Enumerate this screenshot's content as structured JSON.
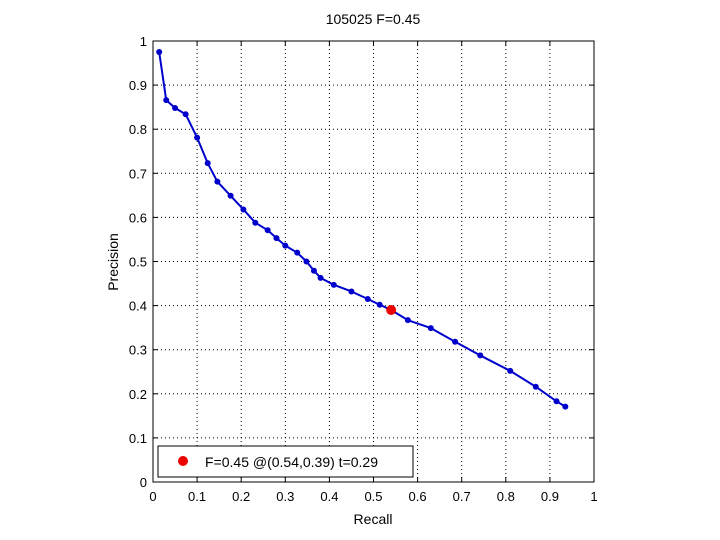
{
  "chart_data": {
    "type": "line",
    "title": "105025 F=0.45",
    "xlabel": "Recall",
    "ylabel": "Precision",
    "xlim": [
      0,
      1
    ],
    "ylim": [
      0,
      1
    ],
    "xticks": [
      "0",
      "0.1",
      "0.2",
      "0.3",
      "0.4",
      "0.5",
      "0.6",
      "0.7",
      "0.8",
      "0.9",
      "1"
    ],
    "yticks": [
      "0",
      "0.1",
      "0.2",
      "0.3",
      "0.4",
      "0.5",
      "0.6",
      "0.7",
      "0.8",
      "0.9",
      "1"
    ],
    "grid": true,
    "grid_style": "dotted",
    "legend_position": "bottom-left",
    "series": [
      {
        "color": "#0000cc",
        "marker": "dot",
        "points": [
          [
            0.014,
            0.975
          ],
          [
            0.03,
            0.866
          ],
          [
            0.05,
            0.848
          ],
          [
            0.074,
            0.834
          ],
          [
            0.1,
            0.781
          ],
          [
            0.124,
            0.723
          ],
          [
            0.146,
            0.681
          ],
          [
            0.176,
            0.649
          ],
          [
            0.205,
            0.618
          ],
          [
            0.232,
            0.588
          ],
          [
            0.26,
            0.571
          ],
          [
            0.28,
            0.553
          ],
          [
            0.3,
            0.536
          ],
          [
            0.327,
            0.52
          ],
          [
            0.348,
            0.5
          ],
          [
            0.365,
            0.479
          ],
          [
            0.38,
            0.463
          ],
          [
            0.41,
            0.447
          ],
          [
            0.45,
            0.432
          ],
          [
            0.487,
            0.415
          ],
          [
            0.514,
            0.402
          ],
          [
            0.54,
            0.39
          ],
          [
            0.578,
            0.367
          ],
          [
            0.63,
            0.349
          ],
          [
            0.685,
            0.318
          ],
          [
            0.742,
            0.287
          ],
          [
            0.81,
            0.252
          ],
          [
            0.868,
            0.216
          ],
          [
            0.915,
            0.183
          ],
          [
            0.935,
            0.171
          ]
        ]
      }
    ],
    "highlight": {
      "color": "#ee0000",
      "recall": 0.54,
      "precision": 0.39,
      "label": "F=0.45 @(0.54,0.39) t=0.29"
    }
  }
}
